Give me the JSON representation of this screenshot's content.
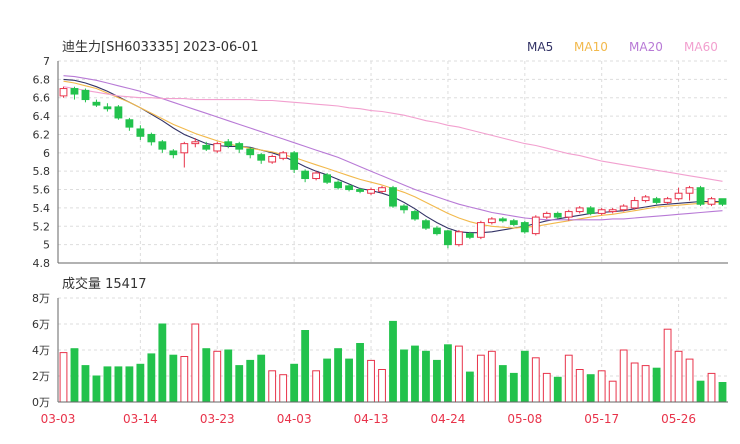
{
  "header": {
    "title": "迪生力[SH603335] 2023-06-01",
    "legend": [
      {
        "label": "MA5",
        "color": "#333366"
      },
      {
        "label": "MA10",
        "color": "#f2b94c"
      },
      {
        "label": "MA20",
        "color": "#b87ad6"
      },
      {
        "label": "MA60",
        "color": "#f2a0cf"
      }
    ]
  },
  "volume_title": "成交量 15417",
  "colors": {
    "up": "#e8334a",
    "down": "#22c24c",
    "ma5": "#333366",
    "ma10": "#f2b94c",
    "ma20": "#b87ad6",
    "ma60": "#f2a0cf",
    "grid": "#dddddd",
    "axis": "#666666",
    "date_text": "#e8334a"
  },
  "chart_data": [
    {
      "type": "candlestick",
      "title": "迪生力[SH603335] 2023-06-01",
      "ylim": [
        4.8,
        7.0
      ],
      "yticks": [
        "7",
        "6.8",
        "6.6",
        "6.4",
        "6.2",
        "6",
        "5.8",
        "5.6",
        "5.4",
        "5.2",
        "5",
        "4.8"
      ],
      "xticks": [
        "03-03",
        "03-14",
        "03-23",
        "04-03",
        "04-13",
        "04-24",
        "05-08",
        "05-17",
        "05-26"
      ],
      "xtick_index": [
        0,
        7,
        14,
        21,
        28,
        35,
        42,
        49,
        56
      ],
      "candles": [
        [
          6.62,
          6.7,
          6.72,
          6.6
        ],
        [
          6.7,
          6.64,
          6.72,
          6.58
        ],
        [
          6.68,
          6.58,
          6.7,
          6.55
        ],
        [
          6.55,
          6.52,
          6.58,
          6.5
        ],
        [
          6.5,
          6.48,
          6.54,
          6.45
        ],
        [
          6.5,
          6.38,
          6.52,
          6.36
        ],
        [
          6.36,
          6.28,
          6.38,
          6.24
        ],
        [
          6.26,
          6.18,
          6.3,
          6.14
        ],
        [
          6.2,
          6.12,
          6.22,
          6.08
        ],
        [
          6.12,
          6.04,
          6.14,
          6.0
        ],
        [
          6.02,
          5.98,
          6.04,
          5.94
        ],
        [
          6.0,
          6.1,
          6.12,
          5.84
        ],
        [
          6.1,
          6.12,
          6.16,
          6.06
        ],
        [
          6.08,
          6.04,
          6.12,
          6.02
        ],
        [
          6.02,
          6.1,
          6.12,
          6.0
        ],
        [
          6.12,
          6.08,
          6.15,
          6.05
        ],
        [
          6.1,
          6.04,
          6.12,
          6.0
        ],
        [
          6.04,
          5.98,
          6.06,
          5.94
        ],
        [
          5.98,
          5.92,
          6.0,
          5.88
        ],
        [
          5.9,
          5.96,
          5.98,
          5.88
        ],
        [
          5.94,
          6.0,
          6.02,
          5.92
        ],
        [
          6.0,
          5.82,
          6.02,
          5.78
        ],
        [
          5.8,
          5.72,
          5.82,
          5.68
        ],
        [
          5.72,
          5.78,
          5.8,
          5.7
        ],
        [
          5.76,
          5.68,
          5.78,
          5.66
        ],
        [
          5.68,
          5.62,
          5.7,
          5.6
        ],
        [
          5.64,
          5.6,
          5.66,
          5.58
        ],
        [
          5.6,
          5.58,
          5.62,
          5.56
        ],
        [
          5.56,
          5.6,
          5.62,
          5.54
        ],
        [
          5.58,
          5.62,
          5.64,
          5.56
        ],
        [
          5.62,
          5.42,
          5.64,
          5.4
        ],
        [
          5.42,
          5.38,
          5.44,
          5.34
        ],
        [
          5.36,
          5.28,
          5.38,
          5.26
        ],
        [
          5.26,
          5.18,
          5.28,
          5.16
        ],
        [
          5.18,
          5.12,
          5.2,
          5.1
        ],
        [
          5.15,
          5.0,
          5.16,
          4.96
        ],
        [
          5.0,
          5.14,
          5.16,
          4.98
        ],
        [
          5.12,
          5.08,
          5.14,
          5.06
        ],
        [
          5.08,
          5.24,
          5.26,
          5.06
        ],
        [
          5.24,
          5.28,
          5.3,
          5.22
        ],
        [
          5.28,
          5.26,
          5.3,
          5.24
        ],
        [
          5.26,
          5.22,
          5.28,
          5.2
        ],
        [
          5.24,
          5.14,
          5.26,
          5.12
        ],
        [
          5.12,
          5.3,
          5.32,
          5.1
        ],
        [
          5.3,
          5.34,
          5.36,
          5.28
        ],
        [
          5.34,
          5.3,
          5.36,
          5.28
        ],
        [
          5.3,
          5.36,
          5.38,
          5.26
        ],
        [
          5.36,
          5.4,
          5.42,
          5.34
        ],
        [
          5.4,
          5.34,
          5.42,
          5.32
        ],
        [
          5.34,
          5.38,
          5.4,
          5.32
        ],
        [
          5.36,
          5.38,
          5.4,
          5.34
        ],
        [
          5.38,
          5.42,
          5.44,
          5.36
        ],
        [
          5.4,
          5.48,
          5.52,
          5.38
        ],
        [
          5.48,
          5.52,
          5.54,
          5.46
        ],
        [
          5.5,
          5.46,
          5.52,
          5.44
        ],
        [
          5.46,
          5.5,
          5.52,
          5.44
        ],
        [
          5.5,
          5.56,
          5.62,
          5.48
        ],
        [
          5.56,
          5.62,
          5.64,
          5.48
        ],
        [
          5.62,
          5.44,
          5.64,
          5.42
        ],
        [
          5.44,
          5.5,
          5.52,
          5.42
        ],
        [
          5.5,
          5.44,
          5.5,
          5.42
        ]
      ],
      "series": [
        {
          "name": "MA5",
          "values": [
            6.8,
            6.79,
            6.76,
            6.72,
            6.67,
            6.61,
            6.55,
            6.49,
            6.42,
            6.35,
            6.27,
            6.2,
            6.15,
            6.1,
            6.08,
            6.07,
            6.07,
            6.06,
            6.03,
            6.0,
            5.96,
            5.91,
            5.85,
            5.8,
            5.76,
            5.71,
            5.66,
            5.61,
            5.59,
            5.56,
            5.52,
            5.46,
            5.39,
            5.31,
            5.24,
            5.18,
            5.14,
            5.13,
            5.13,
            5.14,
            5.16,
            5.18,
            5.2,
            5.23,
            5.26,
            5.28,
            5.3,
            5.32,
            5.34,
            5.35,
            5.36,
            5.37,
            5.39,
            5.41,
            5.43,
            5.44,
            5.45,
            5.46,
            5.47,
            5.47,
            5.47
          ]
        },
        {
          "name": "MA10",
          "values": [
            6.78,
            6.76,
            6.73,
            6.7,
            6.65,
            6.6,
            6.55,
            6.49,
            6.43,
            6.37,
            6.31,
            6.26,
            6.21,
            6.17,
            6.13,
            6.1,
            6.07,
            6.05,
            6.03,
            6.01,
            5.98,
            5.95,
            5.91,
            5.87,
            5.83,
            5.79,
            5.75,
            5.71,
            5.68,
            5.65,
            5.61,
            5.57,
            5.52,
            5.46,
            5.4,
            5.34,
            5.29,
            5.25,
            5.22,
            5.2,
            5.19,
            5.18,
            5.19,
            5.2,
            5.22,
            5.24,
            5.26,
            5.28,
            5.3,
            5.32,
            5.33,
            5.35,
            5.37,
            5.39,
            5.41,
            5.42,
            5.43,
            5.44,
            5.45,
            5.46,
            5.46
          ]
        },
        {
          "name": "MA20",
          "values": [
            6.84,
            6.83,
            6.81,
            6.79,
            6.76,
            6.73,
            6.7,
            6.67,
            6.63,
            6.59,
            6.55,
            6.51,
            6.47,
            6.43,
            6.39,
            6.35,
            6.31,
            6.27,
            6.23,
            6.19,
            6.15,
            6.11,
            6.07,
            6.03,
            5.99,
            5.95,
            5.9,
            5.85,
            5.8,
            5.75,
            5.7,
            5.65,
            5.6,
            5.56,
            5.52,
            5.48,
            5.44,
            5.41,
            5.38,
            5.35,
            5.33,
            5.31,
            5.29,
            5.28,
            5.27,
            5.27,
            5.27,
            5.27,
            5.27,
            5.27,
            5.28,
            5.28,
            5.29,
            5.3,
            5.31,
            5.32,
            5.33,
            5.34,
            5.35,
            5.36,
            5.37
          ]
        },
        {
          "name": "MA60",
          "values": [
            6.72,
            6.7,
            6.68,
            6.66,
            6.64,
            6.62,
            6.61,
            6.6,
            6.6,
            6.59,
            6.59,
            6.59,
            6.58,
            6.58,
            6.58,
            6.58,
            6.58,
            6.58,
            6.57,
            6.57,
            6.56,
            6.55,
            6.54,
            6.53,
            6.52,
            6.51,
            6.49,
            6.48,
            6.46,
            6.45,
            6.43,
            6.41,
            6.38,
            6.35,
            6.33,
            6.3,
            6.28,
            6.25,
            6.22,
            6.19,
            6.16,
            6.13,
            6.1,
            6.08,
            6.05,
            6.02,
            5.99,
            5.97,
            5.94,
            5.91,
            5.89,
            5.87,
            5.85,
            5.83,
            5.81,
            5.79,
            5.77,
            5.75,
            5.73,
            5.71,
            5.69
          ]
        }
      ]
    },
    {
      "type": "bar",
      "title": "成交量 15417",
      "ylim": [
        0,
        80000
      ],
      "yticks": [
        "8万",
        "6万",
        "4万",
        "2万",
        "0万"
      ],
      "values": [
        38000,
        41000,
        28000,
        20000,
        27000,
        27000,
        27000,
        29000,
        37000,
        60000,
        36000,
        35000,
        60000,
        41000,
        39000,
        40000,
        28000,
        32000,
        36000,
        24000,
        21000,
        29000,
        55000,
        24000,
        33000,
        41000,
        33000,
        45000,
        32000,
        25000,
        62000,
        40000,
        43000,
        39000,
        32000,
        44000,
        43000,
        23000,
        36000,
        39000,
        28000,
        22000,
        39000,
        34000,
        22000,
        19000,
        36000,
        25000,
        21000,
        24000,
        16000,
        40000,
        30000,
        28000,
        26000,
        56000,
        39000,
        33000,
        16000,
        22000,
        15000
      ]
    }
  ]
}
